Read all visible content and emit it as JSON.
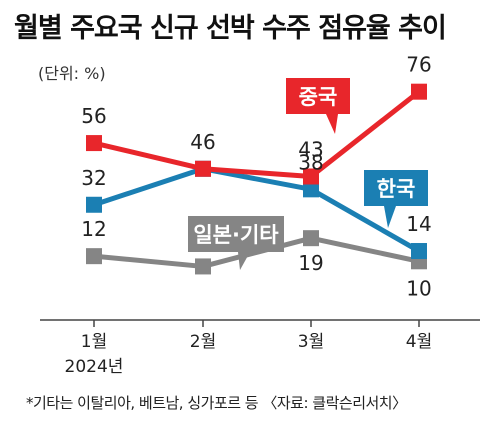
{
  "chart_data": {
    "type": "line",
    "title": "월별 주요국 신규 선박 수주 점유율 추이",
    "unit": "(단위: %)",
    "categories": [
      "1월",
      "2월",
      "3월",
      "4월"
    ],
    "year_label": "2024년",
    "series": [
      {
        "name": "중국",
        "values": [
          56,
          46,
          43,
          76
        ],
        "color": "#e8262b"
      },
      {
        "name": "한국",
        "values": [
          32,
          46,
          38,
          14
        ],
        "color": "#1b7fb3"
      },
      {
        "name": "일본·기타",
        "values": [
          12,
          8,
          19,
          10
        ],
        "color": "#858585"
      }
    ],
    "footnote": "*기타는 이탈리아, 베트남, 싱가포르 등 〈자료: 클락슨리서치〉",
    "grid": false
  }
}
